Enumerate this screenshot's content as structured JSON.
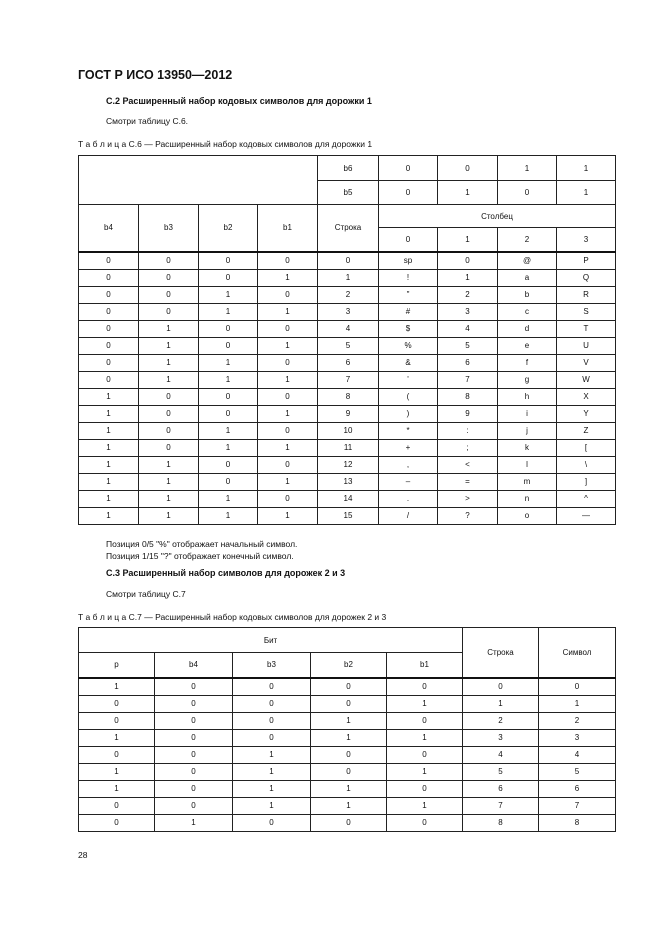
{
  "header": {
    "title": "ГОСТ Р ИСО 13950—2012"
  },
  "section_c2": {
    "heading": "С.2  Расширенный набор кодовых символов для дорожки 1",
    "ref": "Смотри таблицу С.6."
  },
  "table_c6": {
    "caption": "Т а б л и ц а  С.6 — Расширенный набор кодовых символов для дорожки 1",
    "b6_label": "b6",
    "b6": [
      "0",
      "0",
      "1",
      "1"
    ],
    "b5_label": "b5",
    "b5": [
      "0",
      "1",
      "0",
      "1"
    ],
    "columns": [
      "b4",
      "b3",
      "b2",
      "b1",
      "Строка"
    ],
    "column_group": "Столбец",
    "column_numbers": [
      "0",
      "1",
      "2",
      "3"
    ],
    "rows": [
      [
        "0",
        "0",
        "0",
        "0",
        "0",
        "sp",
        "0",
        "@",
        "P"
      ],
      [
        "0",
        "0",
        "0",
        "1",
        "1",
        "!",
        "1",
        "a",
        "Q"
      ],
      [
        "0",
        "0",
        "1",
        "0",
        "2",
        "\"",
        "2",
        "b",
        "R"
      ],
      [
        "0",
        "0",
        "1",
        "1",
        "3",
        "#",
        "3",
        "c",
        "S"
      ],
      [
        "0",
        "1",
        "0",
        "0",
        "4",
        "$",
        "4",
        "d",
        "T"
      ],
      [
        "0",
        "1",
        "0",
        "1",
        "5",
        "%",
        "5",
        "e",
        "U"
      ],
      [
        "0",
        "1",
        "1",
        "0",
        "6",
        "&",
        "6",
        "f",
        "V"
      ],
      [
        "0",
        "1",
        "1",
        "1",
        "7",
        "'",
        "7",
        "g",
        "W"
      ],
      [
        "1",
        "0",
        "0",
        "0",
        "8",
        "(",
        "8",
        "h",
        "X"
      ],
      [
        "1",
        "0",
        "0",
        "1",
        "9",
        ")",
        "9",
        "i",
        "Y"
      ],
      [
        "1",
        "0",
        "1",
        "0",
        "10",
        "*",
        ":",
        "j",
        "Z"
      ],
      [
        "1",
        "0",
        "1",
        "1",
        "11",
        "+",
        ";",
        "k",
        "["
      ],
      [
        "1",
        "1",
        "0",
        "0",
        "12",
        ",",
        "<",
        "l",
        "\\"
      ],
      [
        "1",
        "1",
        "0",
        "1",
        "13",
        "–",
        "=",
        "m",
        "]"
      ],
      [
        "1",
        "1",
        "1",
        "0",
        "14",
        ".",
        ">",
        "n",
        "^"
      ],
      [
        "1",
        "1",
        "1",
        "1",
        "15",
        "/",
        "?",
        "o",
        "—"
      ]
    ]
  },
  "notes": [
    "Позиция 0/5 \"%\" отображает начальный символ.",
    "Позиция 1/15 \"?\" отображает конечный символ."
  ],
  "section_c3": {
    "heading": "С.3  Расширенный набор символов для дорожек 2 и 3",
    "ref": "Смотри таблицу С.7"
  },
  "table_c7": {
    "caption": "Т а б л и ц а  С.7 — Расширенный набор кодовых символов для дорожек 2 и 3",
    "group": "Бит",
    "bit_columns": [
      "p",
      "b4",
      "b3",
      "b2",
      "b1"
    ],
    "row_label": "Строка",
    "symbol_label": "Символ",
    "rows": [
      [
        "1",
        "0",
        "0",
        "0",
        "0",
        "0",
        "0"
      ],
      [
        "0",
        "0",
        "0",
        "0",
        "1",
        "1",
        "1"
      ],
      [
        "0",
        "0",
        "0",
        "1",
        "0",
        "2",
        "2"
      ],
      [
        "1",
        "0",
        "0",
        "1",
        "1",
        "3",
        "3"
      ],
      [
        "0",
        "0",
        "1",
        "0",
        "0",
        "4",
        "4"
      ],
      [
        "1",
        "0",
        "1",
        "0",
        "1",
        "5",
        "5"
      ],
      [
        "1",
        "0",
        "1",
        "1",
        "0",
        "6",
        "6"
      ],
      [
        "0",
        "0",
        "1",
        "1",
        "1",
        "7",
        "7"
      ],
      [
        "0",
        "1",
        "0",
        "0",
        "0",
        "8",
        "8"
      ]
    ]
  },
  "footer": {
    "page_number": "28"
  }
}
